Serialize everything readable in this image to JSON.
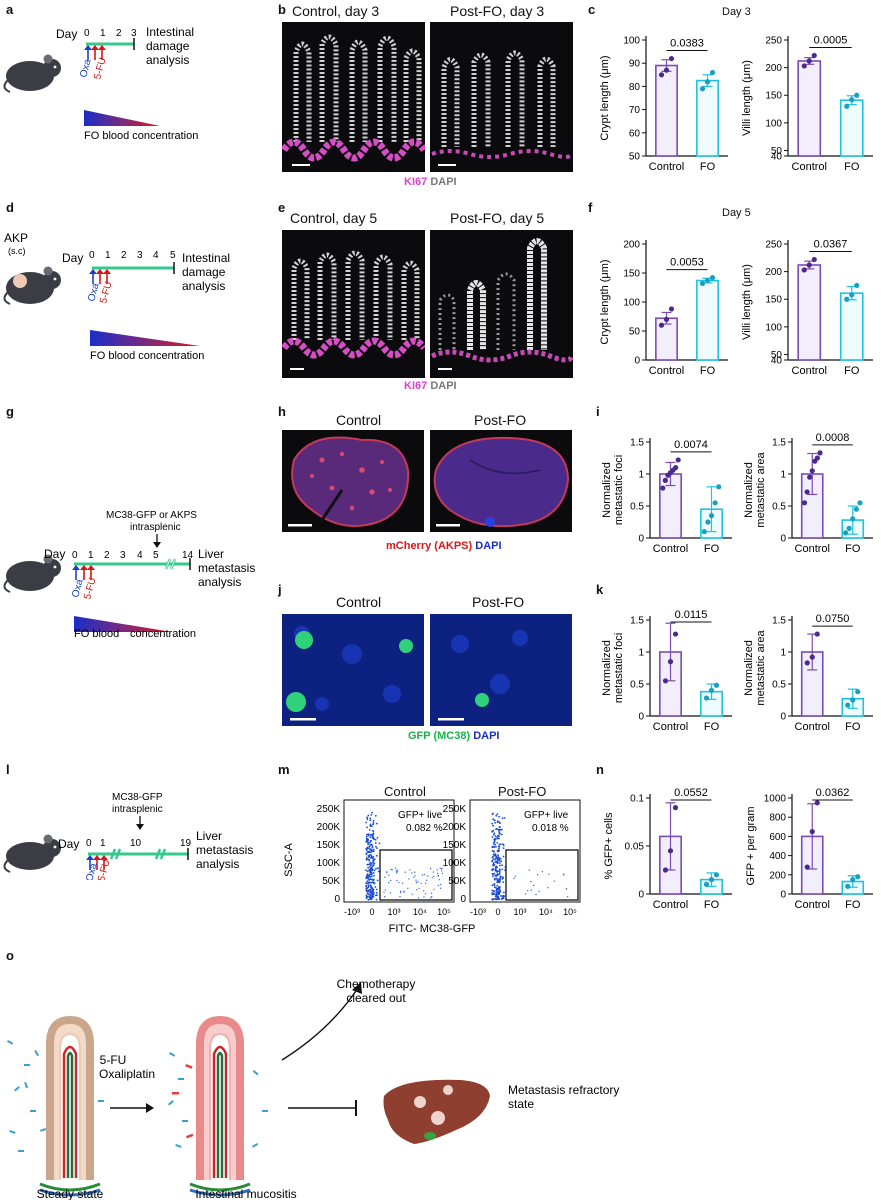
{
  "panels": {
    "a": {
      "letter": "a",
      "day_word": "Day",
      "days": [
        "0",
        "1",
        "2",
        "3"
      ],
      "oxa": "Oxa",
      "fu": "5-FU",
      "endpoint": [
        "Intestinal",
        "damage",
        "analysis"
      ],
      "gradient": "FO blood concentration"
    },
    "b": {
      "letter": "b",
      "left_title": "Control, day 3",
      "right_title": "Post-FO, day 3",
      "stain_a": "KI67",
      "stain_b": "DAPI"
    },
    "c": {
      "letter": "c",
      "title": "Day 3"
    },
    "d": {
      "letter": "d",
      "akp": "AKP",
      "sc": "(s.c)",
      "day_word": "Day",
      "days": [
        "0",
        "1",
        "2",
        "3",
        "4",
        "5"
      ],
      "oxa": "Oxa",
      "fu": "5-FU",
      "endpoint": [
        "Intestinal",
        "damage",
        "analysis"
      ],
      "gradient": "FO blood concentration"
    },
    "e": {
      "letter": "e",
      "left_title": "Control, day 5",
      "right_title": "Post-FO, day 5",
      "stain_a": "KI67",
      "stain_b": "DAPI"
    },
    "f": {
      "letter": "f",
      "title": "Day 5"
    },
    "g": {
      "letter": "g",
      "injection": [
        "MC38-GFP or AKPS",
        "intrasplenic"
      ],
      "day_word": "Day",
      "days": [
        "0",
        "1",
        "2",
        "3",
        "4",
        "5",
        "14"
      ],
      "oxa": "Oxa",
      "fu": "5-FU",
      "endpoint": [
        "Liver",
        "metastasis",
        "analysis"
      ],
      "gradient_a": "FO blood",
      "gradient_b": "concentration"
    },
    "h": {
      "letter": "h",
      "left_title": "Control",
      "right_title": "Post-FO",
      "stain_a": "mCherry (AKPS)",
      "stain_b": "DAPI"
    },
    "i": {
      "letter": "i"
    },
    "j": {
      "letter": "j",
      "left_title": "Control",
      "right_title": "Post-FO",
      "stain_a": "GFP (MC38)",
      "stain_b": "DAPI"
    },
    "k": {
      "letter": "k"
    },
    "l": {
      "letter": "l",
      "injection": [
        "MC38-GFP",
        "intrasplenic"
      ],
      "day_word": "Day",
      "days": [
        "0",
        "1",
        "10",
        "19"
      ],
      "oxa": "Oxa",
      "fu": "5-FU",
      "endpoint": [
        "Liver",
        "metastasis",
        "analysis"
      ]
    },
    "m": {
      "letter": "m",
      "left_title": "Control",
      "right_title": "Post-FO",
      "ylabel": "SSC-A",
      "xlabel": "FITC- MC38-GFP",
      "yticks": [
        "250K",
        "200K",
        "150K",
        "100K",
        "50K",
        "0"
      ],
      "xticks": [
        "-10³",
        "0",
        "10³",
        "10⁴",
        "10⁵"
      ],
      "gate_label": "GFP+ live",
      "left_pct": "0.082 %",
      "right_pct": "0.018 %"
    },
    "n": {
      "letter": "n"
    },
    "o": {
      "letter": "o",
      "treatment": [
        "5-FU",
        "Oxaliplatin"
      ],
      "cleared": [
        "Chemotherapy",
        "cleared out"
      ],
      "refractory": [
        "Metastasis refractory",
        "state"
      ],
      "steady": "Steady state",
      "mucositis": "Intestinal mucositis"
    }
  },
  "chart_data": [
    {
      "id": "c1",
      "type": "bar",
      "title": "",
      "ylabel": "Crypt length (μm)",
      "categories": [
        "Control",
        "FO"
      ],
      "values": [
        89,
        82.5
      ],
      "errors": [
        2.5,
        2.5
      ],
      "points": [
        [
          85,
          87,
          92
        ],
        [
          79,
          82,
          86
        ]
      ],
      "ylim": [
        50,
        100
      ],
      "yticks": [
        50,
        60,
        70,
        80,
        90,
        100
      ],
      "pvalue": "0.0383"
    },
    {
      "id": "c2",
      "type": "bar",
      "title": "",
      "ylabel": "Villi length (μm)",
      "categories": [
        "Control",
        "FO"
      ],
      "values": [
        212,
        141
      ],
      "errors": [
        6,
        8
      ],
      "points": [
        [
          203,
          212,
          222
        ],
        [
          130,
          142,
          150
        ]
      ],
      "ylim": [
        40,
        250
      ],
      "yticks": [
        40,
        50,
        100,
        150,
        200,
        250
      ],
      "pvalue": "0.0005"
    },
    {
      "id": "f1",
      "type": "bar",
      "title": "",
      "ylabel": "Crypt length (μm)",
      "categories": [
        "Control",
        "FO"
      ],
      "values": [
        72,
        137
      ],
      "errors": [
        10,
        4
      ],
      "points": [
        [
          60,
          70,
          88
        ],
        [
          132,
          137,
          142
        ]
      ],
      "ylim": [
        0,
        200
      ],
      "yticks": [
        0,
        50,
        100,
        150,
        200
      ],
      "pvalue": "0.0053"
    },
    {
      "id": "f2",
      "type": "bar",
      "title": "",
      "ylabel": "Villi length (μm)",
      "categories": [
        "Control",
        "FO"
      ],
      "values": [
        212,
        161
      ],
      "errors": [
        7,
        12
      ],
      "points": [
        [
          203,
          212,
          222
        ],
        [
          150,
          158,
          175
        ]
      ],
      "ylim": [
        40,
        250
      ],
      "yticks": [
        40,
        50,
        100,
        150,
        200,
        250
      ],
      "pvalue": "0.0367"
    },
    {
      "id": "i1",
      "type": "bar",
      "title": "",
      "ylabel": [
        "Normalized",
        "metastatic foci"
      ],
      "categories": [
        "Control",
        "FO"
      ],
      "values": [
        1.0,
        0.45
      ],
      "errors": [
        0.18,
        0.35
      ],
      "points": [
        [
          0.78,
          0.9,
          0.98,
          1.02,
          1.06,
          1.1,
          1.22
        ],
        [
          0.1,
          0.25,
          0.35,
          0.55,
          0.8
        ]
      ],
      "ylim": [
        0,
        1.5
      ],
      "yticks": [
        0,
        0.5,
        1,
        1.5
      ],
      "pvalue": "0.0074"
    },
    {
      "id": "i2",
      "type": "bar",
      "title": "",
      "ylabel": [
        "Normalized",
        "metastatic area"
      ],
      "categories": [
        "Control",
        "FO"
      ],
      "values": [
        1.0,
        0.28
      ],
      "errors": [
        0.32,
        0.22
      ],
      "points": [
        [
          0.55,
          0.72,
          0.95,
          1.05,
          1.2,
          1.25,
          1.33
        ],
        [
          0.08,
          0.15,
          0.3,
          0.45,
          0.55
        ]
      ],
      "ylim": [
        0,
        1.5
      ],
      "yticks": [
        0,
        0.5,
        1,
        1.5
      ],
      "pvalue": "0.0008"
    },
    {
      "id": "k1",
      "type": "bar",
      "title": "",
      "ylabel": [
        "Normalized",
        "metastatic foci"
      ],
      "categories": [
        "Control",
        "FO"
      ],
      "values": [
        1.0,
        0.38
      ],
      "errors": [
        0.45,
        0.12
      ],
      "points": [
        [
          0.55,
          0.85,
          1.28
        ],
        [
          0.28,
          0.4,
          0.48
        ]
      ],
      "ylim": [
        0,
        1.5
      ],
      "yticks": [
        0,
        0.5,
        1,
        1.5
      ],
      "pvalue": "0.0115"
    },
    {
      "id": "k2",
      "type": "bar",
      "title": "",
      "ylabel": [
        "Normalized",
        "metastatic area"
      ],
      "categories": [
        "Control",
        "FO"
      ],
      "values": [
        1.0,
        0.27
      ],
      "errors": [
        0.28,
        0.15
      ],
      "points": [
        [
          0.83,
          0.92,
          1.28
        ],
        [
          0.17,
          0.25,
          0.38
        ]
      ],
      "ylim": [
        0,
        1.5
      ],
      "yticks": [
        0,
        0.5,
        1,
        1.5
      ],
      "pvalue": "0.0750"
    },
    {
      "id": "n1",
      "type": "bar",
      "title": "",
      "ylabel": "% GFP+ cells",
      "categories": [
        "Control",
        "FO"
      ],
      "values": [
        0.06,
        0.015
      ],
      "errors": [
        0.035,
        0.007
      ],
      "points": [
        [
          0.025,
          0.045,
          0.09
        ],
        [
          0.01,
          0.015,
          0.02
        ]
      ],
      "ylim": [
        0,
        0.1
      ],
      "yticks": [
        0,
        0.05,
        0.1
      ],
      "pvalue": "0.0552"
    },
    {
      "id": "n2",
      "type": "bar",
      "title": "",
      "ylabel": "GFP + per gram",
      "categories": [
        "Control",
        "FO"
      ],
      "values": [
        600,
        130
      ],
      "errors": [
        340,
        60
      ],
      "points": [
        [
          280,
          650,
          950
        ],
        [
          80,
          150,
          180
        ]
      ],
      "ylim": [
        0,
        1000
      ],
      "yticks": [
        0,
        200,
        400,
        600,
        800,
        1000
      ],
      "pvalue": "0.0362"
    }
  ],
  "colors": {
    "control": "#7b4bb5",
    "fo": "#1cc4e0",
    "control_fill": "#f3eefc",
    "fo_fill": "#eefbff",
    "timeline": "#35c98b",
    "oxa": "#1a3fd0",
    "fu": "#d01818",
    "ki67": "#e040d0",
    "dapi": "#d8d8d8",
    "mcherry": "#d81818",
    "gfp": "#19b34c",
    "dapi_blue": "#1a2ec8"
  }
}
